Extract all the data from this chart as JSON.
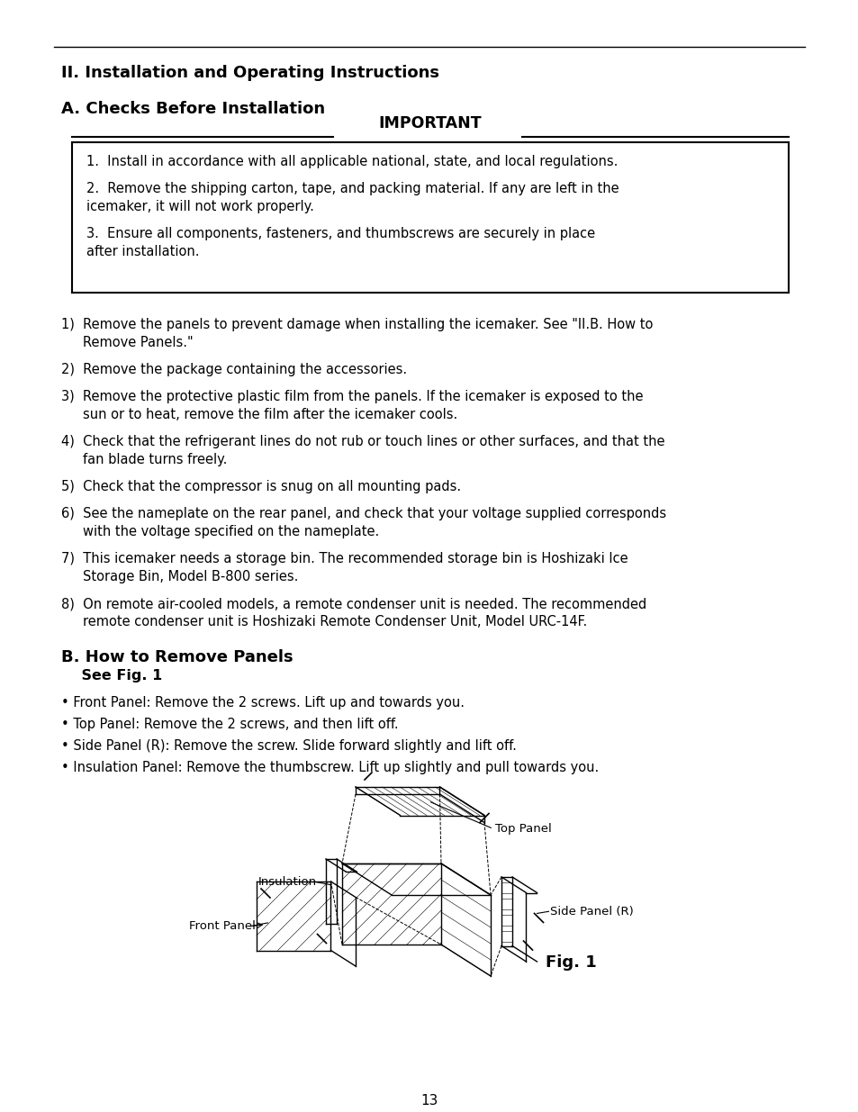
{
  "bg_color": "#ffffff",
  "text_color": "#000000",
  "page_number": "13",
  "title1": "II. Installation and Operating Instructions",
  "title2": "A. Checks Before Installation",
  "important_header": "IMPORTANT",
  "important_items": [
    "1.  Install in accordance with all applicable national, state, and local regulations.",
    "2.  Remove the shipping carton, tape, and packing material. If any are left in the\n       icemaker, it will not work properly.",
    "3.  Ensure all components, fasteners, and thumbscrews are securely in place\n       after installation."
  ],
  "numbered_items": [
    "1)  Remove the panels to prevent damage when installing the icemaker. See \"II.B. How to\n      Remove Panels.\"",
    "2)  Remove the package containing the accessories.",
    "3)  Remove the protective plastic film from the panels. If the icemaker is exposed to the\n      sun or to heat, remove the film after the icemaker cools.",
    "4)  Check that the refrigerant lines do not rub or touch lines or other surfaces, and that the\n      fan blade turns freely.",
    "5)  Check that the compressor is snug on all mounting pads.",
    "6)  See the nameplate on the rear panel, and check that your voltage supplied corresponds\n      with the voltage specified on the nameplate.",
    "7)  This icemaker needs a storage bin. The recommended storage bin is Hoshizaki Ice\n      Storage Bin, Model B-800 series.",
    "8)  On remote air-cooled models, a remote condenser unit is needed. The recommended\n      remote condenser unit is Hoshizaki Remote Condenser Unit, Model URC-14F."
  ],
  "title3": "B. How to Remove Panels",
  "subtitle3": "    See Fig. 1",
  "bullet_items": [
    "• Front Panel: Remove the 2 screws. Lift up and towards you.",
    "• Top Panel: Remove the 2 screws, and then lift off.",
    "• Side Panel (R): Remove the screw. Slide forward slightly and lift off.",
    "• Insulation Panel: Remove the thumbscrew. Lift up slightly and pull towards you."
  ],
  "fig_label": "Fig. 1"
}
